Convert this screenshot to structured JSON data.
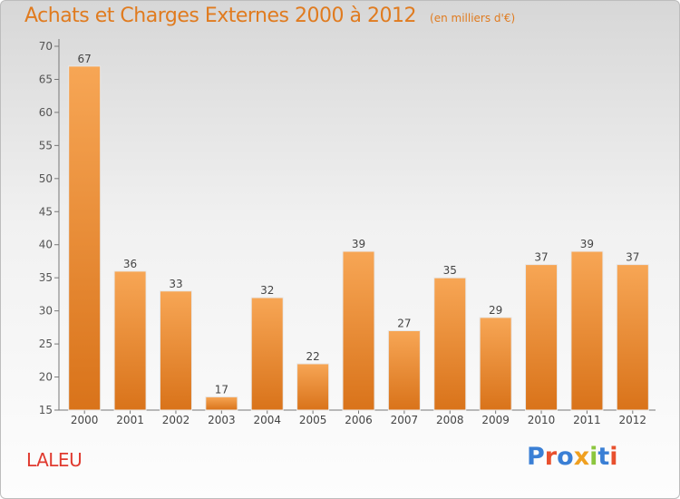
{
  "header": {
    "title": "Achats et Charges Externes 2000 à 2012",
    "unit": "(en milliers d'€)"
  },
  "footer": {
    "town": "LALEU",
    "logo": "Proxiti"
  },
  "colors": {
    "accent": "#e07b1f",
    "town": "#e03a2f",
    "bar_light": "#f7a655",
    "bar_dark": "#d9731a",
    "logo_letters": [
      "#3a7fd5",
      "#e8502e",
      "#3a7fd5",
      "#f0a020",
      "#8cc63e",
      "#3a7fd5",
      "#e8502e"
    ]
  },
  "chart_data": {
    "type": "bar",
    "title": "Achats et Charges Externes 2000 à 2012",
    "subtitle": "(en milliers d'€)",
    "categories": [
      "2000",
      "2001",
      "2002",
      "2003",
      "2004",
      "2005",
      "2006",
      "2007",
      "2008",
      "2009",
      "2010",
      "2011",
      "2012"
    ],
    "values": [
      67,
      36,
      33,
      17,
      32,
      22,
      39,
      27,
      35,
      29,
      37,
      39,
      37
    ],
    "ylim": [
      15,
      70
    ],
    "yticks": [
      15,
      20,
      25,
      30,
      35,
      40,
      45,
      50,
      55,
      60,
      65,
      70
    ],
    "grid": false,
    "data_labels": true
  }
}
